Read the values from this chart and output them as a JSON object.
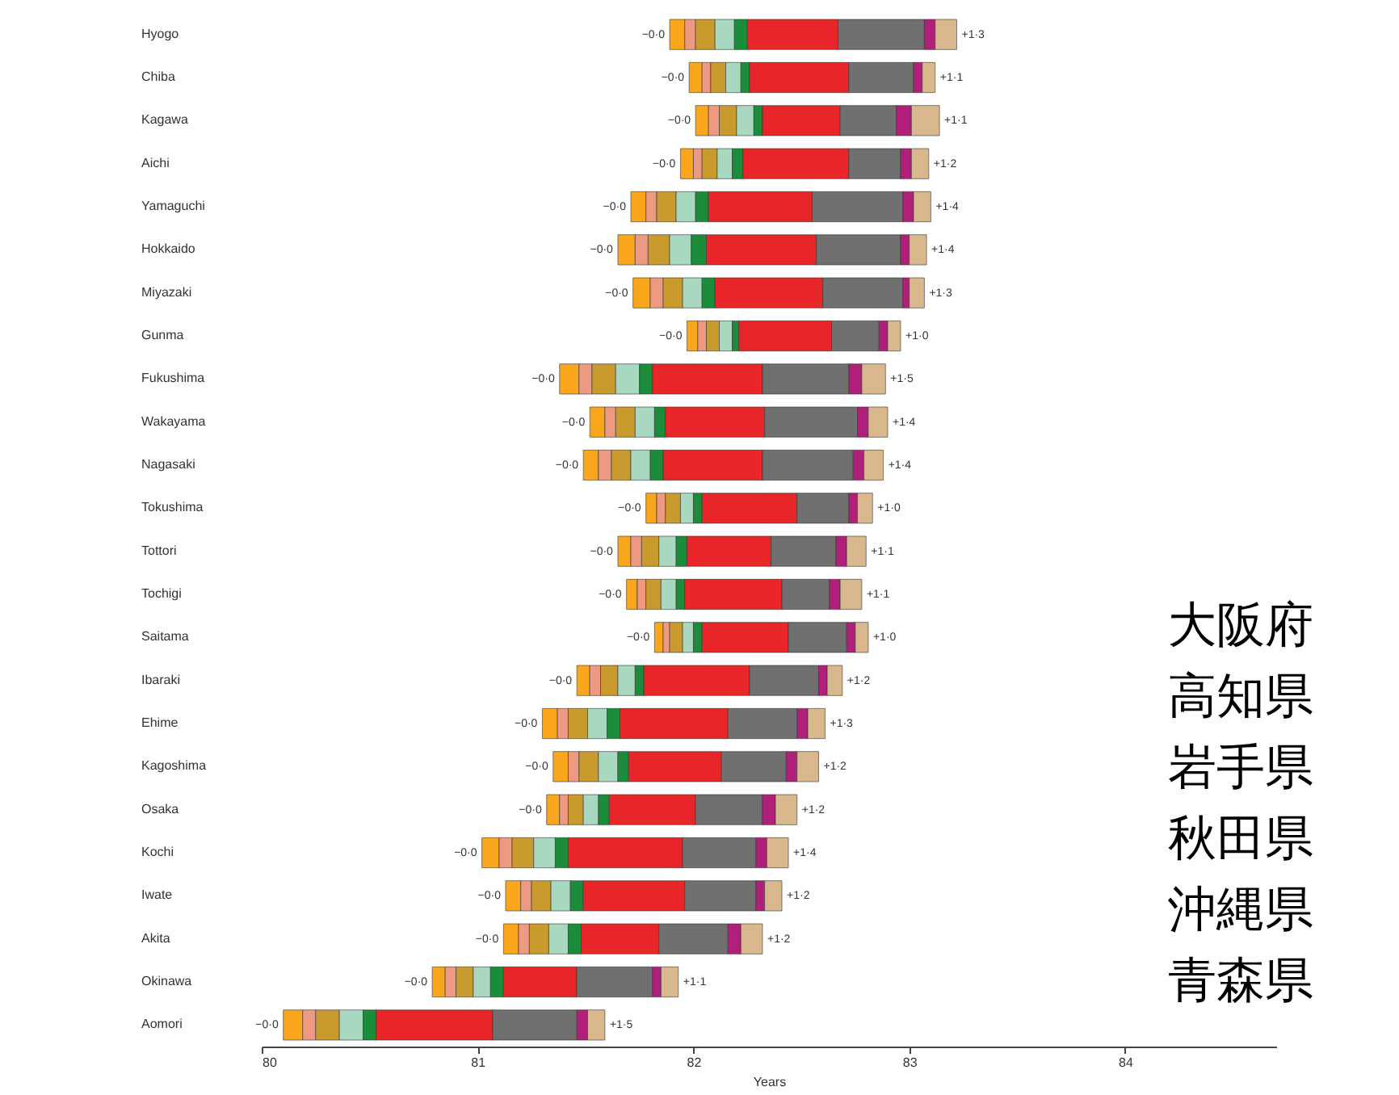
{
  "chart_data": {
    "type": "bar",
    "orientation": "horizontal",
    "xlabel": "Years",
    "categories": [
      "Hyogo",
      "Chiba",
      "Kagawa",
      "Aichi",
      "Yamaguchi",
      "Hokkaido",
      "Miyazaki",
      "Gunma",
      "Fukushima",
      "Wakayama",
      "Nagasaki",
      "Tokushima",
      "Tottori",
      "Tochigi",
      "Saitama",
      "Ibaraki",
      "Ehime",
      "Kagoshima",
      "Osaka",
      "Kochi",
      "Iwate",
      "Akita",
      "Okinawa",
      "Aomori"
    ],
    "series": [
      {
        "color": "#f9a61d",
        "base": [
          81.89,
          81.98,
          82.01,
          81.94,
          81.71,
          81.65,
          81.72,
          81.97,
          81.38,
          81.52,
          81.49,
          81.78,
          81.65,
          81.69,
          81.82,
          81.46,
          81.3,
          81.35,
          81.32,
          81.02,
          81.13,
          81.12,
          80.79,
          80.1
        ],
        "values": [
          0.07,
          0.06,
          0.06,
          0.06,
          0.07,
          0.08,
          0.08,
          0.05,
          0.09,
          0.07,
          0.07,
          0.05,
          0.06,
          0.05,
          0.04,
          0.06,
          0.07,
          0.07,
          0.06,
          0.08,
          0.07,
          0.07,
          0.06,
          0.09
        ]
      },
      {
        "color": "#ee9a83",
        "base": [
          81.96,
          82.04,
          82.07,
          82.0,
          81.78,
          81.73,
          81.8,
          82.02,
          81.47,
          81.59,
          81.56,
          81.83,
          81.71,
          81.74,
          81.86,
          81.52,
          81.37,
          81.42,
          81.38,
          81.1,
          81.2,
          81.19,
          80.85,
          80.19
        ],
        "values": [
          0.05,
          0.04,
          0.05,
          0.04,
          0.05,
          0.06,
          0.06,
          0.04,
          0.06,
          0.05,
          0.06,
          0.04,
          0.05,
          0.04,
          0.03,
          0.05,
          0.05,
          0.05,
          0.04,
          0.06,
          0.05,
          0.05,
          0.05,
          0.06
        ]
      },
      {
        "color": "#c99a2e",
        "base": [
          82.01,
          82.08,
          82.12,
          82.04,
          81.83,
          81.79,
          81.86,
          82.06,
          81.53,
          81.64,
          81.62,
          81.87,
          81.76,
          81.78,
          81.89,
          81.57,
          81.42,
          81.47,
          81.42,
          81.16,
          81.25,
          81.24,
          80.9,
          80.25
        ],
        "values": [
          0.09,
          0.07,
          0.08,
          0.07,
          0.09,
          0.1,
          0.09,
          0.06,
          0.11,
          0.09,
          0.09,
          0.07,
          0.08,
          0.07,
          0.06,
          0.08,
          0.09,
          0.09,
          0.07,
          0.1,
          0.09,
          0.09,
          0.08,
          0.11
        ]
      },
      {
        "color": "#a9d8c0",
        "base": [
          82.1,
          82.15,
          82.2,
          82.11,
          81.92,
          81.89,
          81.95,
          82.12,
          81.64,
          81.73,
          81.71,
          81.94,
          81.84,
          81.85,
          81.95,
          81.65,
          81.51,
          81.56,
          81.49,
          81.26,
          81.34,
          81.33,
          80.98,
          80.36
        ],
        "values": [
          0.09,
          0.07,
          0.08,
          0.07,
          0.09,
          0.1,
          0.09,
          0.06,
          0.11,
          0.09,
          0.09,
          0.06,
          0.08,
          0.07,
          0.05,
          0.08,
          0.09,
          0.09,
          0.07,
          0.1,
          0.09,
          0.09,
          0.08,
          0.11
        ]
      },
      {
        "color": "#1b8c3a",
        "base": [
          82.19,
          82.22,
          82.28,
          82.18,
          82.01,
          81.99,
          82.04,
          82.18,
          81.75,
          81.82,
          81.8,
          82.0,
          81.92,
          81.92,
          82.0,
          81.73,
          81.6,
          81.65,
          81.56,
          81.36,
          81.43,
          81.42,
          81.06,
          80.47
        ],
        "values": [
          0.06,
          0.04,
          0.04,
          0.05,
          0.06,
          0.07,
          0.06,
          0.03,
          0.06,
          0.05,
          0.06,
          0.04,
          0.05,
          0.04,
          0.04,
          0.04,
          0.06,
          0.05,
          0.05,
          0.06,
          0.06,
          0.06,
          0.06,
          0.06
        ]
      },
      {
        "color": "#e8262a",
        "base": [
          82.25,
          82.26,
          82.32,
          82.23,
          82.07,
          82.06,
          82.1,
          82.21,
          81.81,
          81.87,
          81.86,
          82.04,
          81.97,
          81.96,
          82.04,
          81.77,
          81.66,
          81.7,
          81.61,
          81.42,
          81.49,
          81.48,
          81.12,
          80.53
        ],
        "values": [
          0.42,
          0.46,
          0.36,
          0.49,
          0.48,
          0.51,
          0.5,
          0.43,
          0.51,
          0.46,
          0.46,
          0.44,
          0.39,
          0.45,
          0.4,
          0.49,
          0.5,
          0.43,
          0.4,
          0.53,
          0.47,
          0.36,
          0.34,
          0.54
        ]
      },
      {
        "color": "#707070",
        "base": [
          82.67,
          82.72,
          82.68,
          82.72,
          82.55,
          82.57,
          82.6,
          82.64,
          82.32,
          82.33,
          82.32,
          82.48,
          82.36,
          82.41,
          82.44,
          82.26,
          82.16,
          82.13,
          82.01,
          81.95,
          81.96,
          81.84,
          81.46,
          81.07
        ],
        "values": [
          0.4,
          0.3,
          0.26,
          0.24,
          0.42,
          0.39,
          0.37,
          0.22,
          0.4,
          0.43,
          0.42,
          0.24,
          0.3,
          0.22,
          0.27,
          0.32,
          0.32,
          0.3,
          0.31,
          0.34,
          0.33,
          0.32,
          0.35,
          0.39
        ]
      },
      {
        "color": "#b0207a",
        "base": [
          83.07,
          83.02,
          82.94,
          82.96,
          82.97,
          82.96,
          82.97,
          82.86,
          82.72,
          82.76,
          82.74,
          82.72,
          82.66,
          82.63,
          82.71,
          82.58,
          82.48,
          82.43,
          82.32,
          82.29,
          82.29,
          82.16,
          81.81,
          81.46
        ],
        "values": [
          0.05,
          0.04,
          0.07,
          0.05,
          0.05,
          0.04,
          0.03,
          0.04,
          0.06,
          0.05,
          0.05,
          0.04,
          0.05,
          0.05,
          0.04,
          0.04,
          0.05,
          0.05,
          0.06,
          0.05,
          0.04,
          0.06,
          0.04,
          0.05
        ]
      },
      {
        "color": "#d8b88c",
        "base": [
          83.12,
          83.06,
          83.01,
          83.01,
          83.02,
          83.0,
          83.0,
          82.9,
          82.78,
          82.81,
          82.79,
          82.76,
          82.71,
          82.68,
          82.75,
          82.62,
          82.53,
          82.48,
          82.38,
          82.34,
          82.33,
          82.22,
          81.85,
          81.51
        ],
        "values": [
          0.1,
          0.06,
          0.13,
          0.08,
          0.08,
          0.08,
          0.07,
          0.06,
          0.11,
          0.09,
          0.09,
          0.07,
          0.09,
          0.1,
          0.06,
          0.07,
          0.08,
          0.1,
          0.1,
          0.1,
          0.08,
          0.1,
          0.08,
          0.08
        ]
      }
    ],
    "totals": [
      "+1·3",
      "+1·1",
      "+1·1",
      "+1·2",
      "+1·4",
      "+1·4",
      "+1·3",
      "+1·0",
      "+1·5",
      "+1·4",
      "+1·4",
      "+1·0",
      "+1·1",
      "+1·1",
      "+1·0",
      "+1·2",
      "+1·3",
      "+1·2",
      "+1·2",
      "+1·4",
      "+1·2",
      "+1·2",
      "+1·1",
      "+1·5"
    ],
    "xlim": [
      80,
      84.7
    ],
    "xticks": [
      80,
      81,
      82,
      83,
      84
    ],
    "grid": false,
    "legend": false,
    "annotations": [
      "−0·0",
      "−0·0",
      "−0·0",
      "−0·0",
      "−0·0",
      "−0·0",
      "−0·0",
      "−0·0",
      "−0·0",
      "−0·0",
      "−0·0",
      "−0·0",
      "−0·0",
      "−0·0",
      "−0·0",
      "−0·0",
      "−0·0",
      "−0·0",
      "−0·0",
      "−0·0",
      "−0·0",
      "−0·0",
      "−0·0",
      "−0·0",
      "大阪府",
      "高知県",
      "岩手県",
      "秋田県",
      "沖縄県",
      "青森県"
    ]
  }
}
